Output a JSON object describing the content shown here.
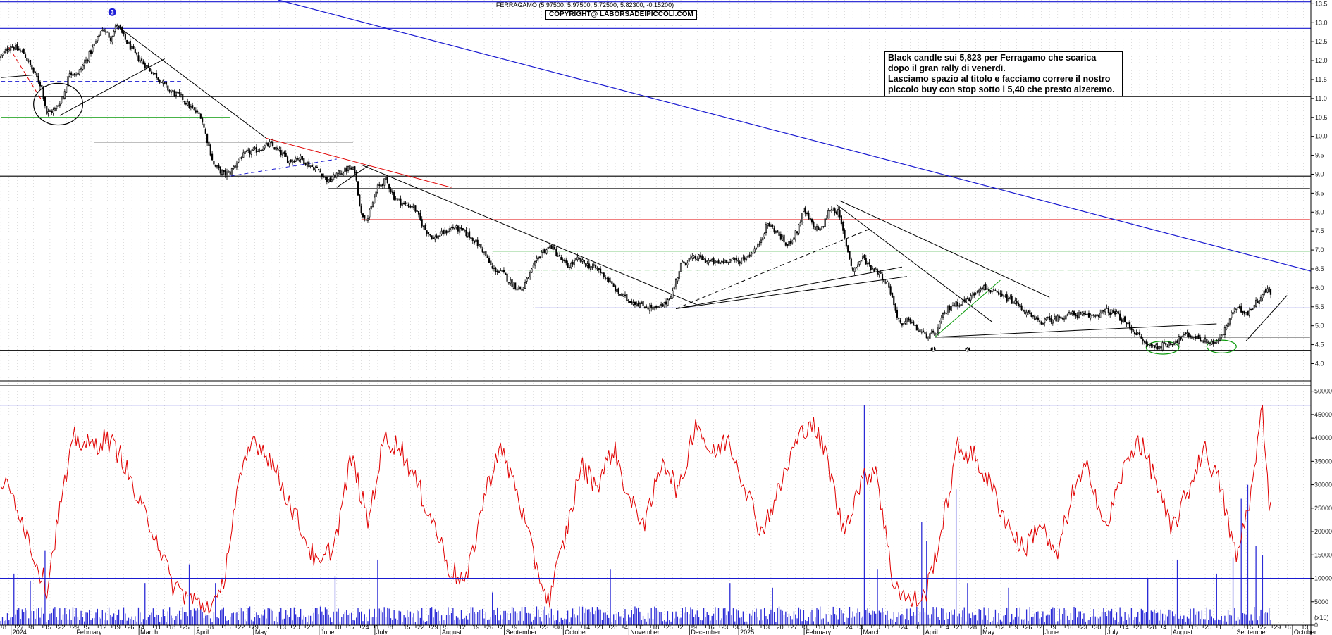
{
  "header": {
    "title": "FERRAGAMO (5.97500, 5.97500, 5.72500, 5.82300, -0.15200)",
    "copyright": "COPYRIGHT@ LABORSADEIPICCOLI.COM"
  },
  "note": {
    "lines": [
      "Black candle sui 5,823 per Ferragamo che scarica",
      "dopo il gran rally di venerdì.",
      "Lasciamo spazio al titolo e facciamo correre il nostro",
      "piccolo buy con stop sotto i 5,40 che presto alzeremo."
    ]
  },
  "markers": [
    {
      "label": "3",
      "date_index": 68,
      "price": 13.28
    },
    {
      "label": "1",
      "date_index": 569,
      "price": 4.38
    },
    {
      "label": "2",
      "date_index": 590,
      "price": 4.38
    }
  ],
  "colors": {
    "candle": "#000000",
    "oscillator": "#e00000",
    "volume": "#2b2bd6",
    "h_blue": "#1a1ad0",
    "h_red": "#e00000",
    "h_green": "#0a9a0a"
  },
  "chart_data": {
    "type": "candlestick",
    "symbol": "FERRAGAMO",
    "last": {
      "open": 5.975,
      "high": 5.975,
      "low": 5.725,
      "close": 5.823,
      "change": -0.152
    },
    "price_axis": {
      "ticks": [
        4.0,
        4.5,
        5.0,
        5.5,
        6.0,
        6.5,
        7.0,
        7.5,
        8.0,
        8.5,
        9.0,
        9.5,
        10.0,
        10.5,
        11.0,
        11.5,
        12.0,
        12.5,
        13.0,
        13.5
      ],
      "ylim": [
        3.6,
        13.6
      ]
    },
    "volume_axis": {
      "ticks": [
        0,
        5000,
        10000,
        15000,
        20000,
        25000,
        30000,
        35000,
        40000,
        45000,
        50000
      ],
      "ylim": [
        0,
        51000
      ],
      "unit_label": "(x10)"
    },
    "months": [
      {
        "label": "2024",
        "index": 8
      },
      {
        "label": "February",
        "index": 47
      },
      {
        "label": "March",
        "index": 86
      },
      {
        "label": "April",
        "index": 120
      },
      {
        "label": "May",
        "index": 156
      },
      {
        "label": "June",
        "index": 196
      },
      {
        "label": "July",
        "index": 230
      },
      {
        "label": "August",
        "index": 270
      },
      {
        "label": "September",
        "index": 309
      },
      {
        "label": "October",
        "index": 345
      },
      {
        "label": "November",
        "index": 385
      },
      {
        "label": "December",
        "index": 422
      },
      {
        "label": "2025",
        "index": 452
      },
      {
        "label": "February",
        "index": 492
      },
      {
        "label": "March",
        "index": 527
      },
      {
        "label": "April",
        "index": 565
      },
      {
        "label": "May",
        "index": 600
      },
      {
        "label": "June",
        "index": 638
      },
      {
        "label": "July",
        "index": 676
      },
      {
        "label": "August",
        "index": 716
      },
      {
        "label": "September",
        "index": 755
      },
      {
        "label": "October",
        "index": 790
      }
    ],
    "day_ticks": [
      "8",
      "27",
      "8",
      "15",
      "22",
      "29",
      "5",
      "12",
      "19",
      "26",
      "4",
      "11",
      "18",
      "25",
      "2",
      "8",
      "15",
      "22",
      "29",
      "6",
      "13",
      "20",
      "27",
      "3",
      "10",
      "17",
      "24",
      "1",
      "8",
      "15",
      "22",
      "29",
      "5",
      "12",
      "19",
      "26",
      "2",
      "9",
      "16",
      "23",
      "30",
      "7",
      "14",
      "21",
      "28",
      "4",
      "11",
      "18",
      "25",
      "2",
      "9",
      "16",
      "23",
      "30",
      "6",
      "13",
      "20",
      "27",
      "3",
      "10",
      "17",
      "24",
      "3",
      "10",
      "17",
      "24",
      "31",
      "7",
      "14",
      "21",
      "28",
      "5",
      "12",
      "19",
      "26",
      "2",
      "9",
      "16",
      "23",
      "30",
      "7",
      "14",
      "21",
      "28",
      "4",
      "11",
      "18",
      "25",
      "1",
      "8",
      "15",
      "22",
      "29",
      "6",
      "13",
      "20"
    ],
    "horizontal_lines": [
      {
        "price": 13.55,
        "color": "blue"
      },
      {
        "price": 12.85,
        "color": "blue"
      },
      {
        "price": 11.05,
        "color": "black"
      },
      {
        "price": 10.5,
        "color": "green",
        "from_index": 0,
        "to_index": 140
      },
      {
        "price": 9.85,
        "color": "black",
        "from_index": 57,
        "to_index": 215
      },
      {
        "price": 8.95,
        "color": "black"
      },
      {
        "price": 8.62,
        "color": "black",
        "from_index": 200,
        "to_index": 799
      },
      {
        "price": 7.8,
        "color": "red",
        "from_index": 220,
        "to_index": 799
      },
      {
        "price": 6.97,
        "color": "green",
        "from_index": 300,
        "to_index": 799
      },
      {
        "price": 6.47,
        "color": "green",
        "dashed": true,
        "from_index": 300,
        "to_index": 799
      },
      {
        "price": 5.47,
        "color": "blue",
        "from_index": 326,
        "to_index": 799
      },
      {
        "price": 4.7,
        "color": "black",
        "from_index": 570,
        "to_index": 799
      },
      {
        "price": 4.35,
        "color": "black"
      }
    ],
    "trendlines": [
      {
        "from": [
          0,
          11.55
        ],
        "to": [
          20,
          11.62
        ],
        "color": "black"
      },
      {
        "from": [
          5,
          12.35
        ],
        "to": [
          25,
          10.95
        ],
        "color": "red",
        "dashed": true
      },
      {
        "from": [
          0,
          11.45
        ],
        "to": [
          110,
          11.45
        ],
        "color": "blue",
        "dashed": true
      },
      {
        "from": [
          36,
          10.55
        ],
        "to": [
          100,
          12.05
        ],
        "color": "black"
      },
      {
        "from": [
          70,
          12.95
        ],
        "to": [
          162,
          9.95
        ],
        "color": "black"
      },
      {
        "from": [
          162,
          9.95
        ],
        "to": [
          275,
          8.65
        ],
        "color": "red"
      },
      {
        "from": [
          140,
          8.95
        ],
        "to": [
          205,
          9.4
        ],
        "color": "blue",
        "dashed": true
      },
      {
        "from": [
          205,
          8.65
        ],
        "to": [
          225,
          9.25
        ],
        "color": "black"
      },
      {
        "from": [
          220,
          9.25
        ],
        "to": [
          425,
          5.55
        ],
        "color": "black"
      },
      {
        "from": [
          412,
          5.45
        ],
        "to": [
          530,
          7.55
        ],
        "color": "black",
        "dashed": true
      },
      {
        "from": [
          412,
          5.45
        ],
        "to": [
          550,
          6.55
        ],
        "color": "black"
      },
      {
        "from": [
          412,
          5.45
        ],
        "to": [
          553,
          6.3
        ],
        "color": "black"
      },
      {
        "from": [
          510,
          8.2
        ],
        "to": [
          605,
          5.1
        ],
        "color": "black"
      },
      {
        "from": [
          512,
          8.3
        ],
        "to": [
          640,
          5.75
        ],
        "color": "black"
      },
      {
        "from": [
          570,
          4.7
        ],
        "to": [
          610,
          6.2
        ],
        "color": "green"
      },
      {
        "from": [
          570,
          4.7
        ],
        "to": [
          742,
          5.05
        ],
        "color": "black"
      },
      {
        "from": [
          760,
          4.6
        ],
        "to": [
          785,
          5.8
        ],
        "color": "black"
      }
    ],
    "ellipses": [
      {
        "center": [
          35,
          10.85
        ],
        "rx_days": 15,
        "ry_price": 0.55,
        "color": "black"
      },
      {
        "center": [
          709,
          4.42
        ],
        "rx_days": 10,
        "ry_price": 0.17,
        "color": "green"
      },
      {
        "center": [
          745,
          4.45
        ],
        "rx_days": 9,
        "ry_price": 0.17,
        "color": "green"
      }
    ],
    "anchors": [
      [
        0,
        12.1
      ],
      [
        6,
        12.4
      ],
      [
        14,
        12.2
      ],
      [
        20,
        11.7
      ],
      [
        25,
        11.3
      ],
      [
        28,
        10.6
      ],
      [
        33,
        10.7
      ],
      [
        38,
        11.05
      ],
      [
        42,
        11.7
      ],
      [
        47,
        11.65
      ],
      [
        52,
        12.0
      ],
      [
        57,
        12.4
      ],
      [
        62,
        12.85
      ],
      [
        67,
        12.6
      ],
      [
        71,
        12.95
      ],
      [
        76,
        12.55
      ],
      [
        83,
        12.1
      ],
      [
        90,
        11.8
      ],
      [
        96,
        11.55
      ],
      [
        103,
        11.2
      ],
      [
        110,
        11.05
      ],
      [
        116,
        10.75
      ],
      [
        122,
        10.55
      ],
      [
        126,
        9.9
      ],
      [
        130,
        9.25
      ],
      [
        136,
        9.0
      ],
      [
        140,
        9.05
      ],
      [
        145,
        9.4
      ],
      [
        150,
        9.55
      ],
      [
        157,
        9.65
      ],
      [
        164,
        9.8
      ],
      [
        170,
        9.6
      ],
      [
        176,
        9.35
      ],
      [
        182,
        9.45
      ],
      [
        188,
        9.25
      ],
      [
        194,
        9.1
      ],
      [
        200,
        8.8
      ],
      [
        205,
        9.0
      ],
      [
        212,
        9.15
      ],
      [
        216,
        9.1
      ],
      [
        220,
        7.95
      ],
      [
        224,
        7.85
      ],
      [
        230,
        8.65
      ],
      [
        235,
        8.85
      ],
      [
        240,
        8.4
      ],
      [
        246,
        8.2
      ],
      [
        252,
        8.15
      ],
      [
        258,
        7.6
      ],
      [
        264,
        7.3
      ],
      [
        270,
        7.45
      ],
      [
        276,
        7.6
      ],
      [
        282,
        7.5
      ],
      [
        288,
        7.3
      ],
      [
        294,
        7.0
      ],
      [
        300,
        6.5
      ],
      [
        306,
        6.4
      ],
      [
        312,
        6.1
      ],
      [
        318,
        5.95
      ],
      [
        324,
        6.45
      ],
      [
        330,
        6.95
      ],
      [
        336,
        7.1
      ],
      [
        341,
        6.8
      ],
      [
        346,
        6.55
      ],
      [
        352,
        6.75
      ],
      [
        358,
        6.6
      ],
      [
        364,
        6.5
      ],
      [
        370,
        6.25
      ],
      [
        376,
        5.9
      ],
      [
        382,
        5.7
      ],
      [
        388,
        5.6
      ],
      [
        394,
        5.5
      ],
      [
        400,
        5.45
      ],
      [
        405,
        5.55
      ],
      [
        410,
        5.9
      ],
      [
        415,
        6.6
      ],
      [
        420,
        6.75
      ],
      [
        426,
        6.8
      ],
      [
        432,
        6.7
      ],
      [
        438,
        6.65
      ],
      [
        444,
        6.75
      ],
      [
        450,
        6.7
      ],
      [
        456,
        6.85
      ],
      [
        462,
        7.1
      ],
      [
        468,
        7.7
      ],
      [
        474,
        7.45
      ],
      [
        480,
        7.1
      ],
      [
        486,
        7.5
      ],
      [
        490,
        8.05
      ],
      [
        496,
        7.6
      ],
      [
        501,
        7.55
      ],
      [
        506,
        8.1
      ],
      [
        511,
        8.0
      ],
      [
        515,
        7.3
      ],
      [
        520,
        6.45
      ],
      [
        526,
        6.8
      ],
      [
        531,
        6.55
      ],
      [
        536,
        6.4
      ],
      [
        542,
        6.05
      ],
      [
        546,
        5.4
      ],
      [
        550,
        4.95
      ],
      [
        554,
        5.2
      ],
      [
        558,
        4.95
      ],
      [
        564,
        4.75
      ],
      [
        570,
        4.75
      ],
      [
        575,
        5.25
      ],
      [
        580,
        5.55
      ],
      [
        586,
        5.6
      ],
      [
        592,
        5.75
      ],
      [
        598,
        6.05
      ],
      [
        603,
        5.95
      ],
      [
        609,
        5.8
      ],
      [
        615,
        5.7
      ],
      [
        621,
        5.55
      ],
      [
        627,
        5.3
      ],
      [
        633,
        5.1
      ],
      [
        639,
        5.15
      ],
      [
        645,
        5.2
      ],
      [
        651,
        5.3
      ],
      [
        657,
        5.3
      ],
      [
        663,
        5.25
      ],
      [
        669,
        5.3
      ],
      [
        675,
        5.4
      ],
      [
        681,
        5.3
      ],
      [
        687,
        5.05
      ],
      [
        693,
        4.8
      ],
      [
        699,
        4.5
      ],
      [
        705,
        4.45
      ],
      [
        711,
        4.5
      ],
      [
        717,
        4.6
      ],
      [
        723,
        4.75
      ],
      [
        729,
        4.7
      ],
      [
        735,
        4.6
      ],
      [
        741,
        4.55
      ],
      [
        745,
        4.7
      ],
      [
        749,
        5.1
      ],
      [
        753,
        5.45
      ],
      [
        757,
        5.4
      ],
      [
        761,
        5.35
      ],
      [
        765,
        5.55
      ],
      [
        769,
        5.8
      ],
      [
        773,
        5.95
      ],
      [
        775,
        5.82
      ]
    ],
    "volume_spikes": [
      [
        8,
        11000
      ],
      [
        18,
        9500
      ],
      [
        27,
        16000
      ],
      [
        88,
        9000
      ],
      [
        115,
        13000
      ],
      [
        131,
        9000
      ],
      [
        204,
        10500
      ],
      [
        230,
        14000
      ],
      [
        300,
        7000
      ],
      [
        372,
        12000
      ],
      [
        445,
        9000
      ],
      [
        471,
        8000
      ],
      [
        527,
        47000
      ],
      [
        535,
        12000
      ],
      [
        562,
        22000
      ],
      [
        565,
        18000
      ],
      [
        583,
        29000
      ],
      [
        590,
        9000
      ],
      [
        615,
        8000
      ],
      [
        700,
        10000
      ],
      [
        718,
        14000
      ],
      [
        742,
        11000
      ],
      [
        752,
        14500
      ],
      [
        757,
        27000
      ],
      [
        761,
        30000
      ],
      [
        766,
        17000
      ],
      [
        770,
        15000
      ]
    ],
    "oscillator_levels": [
      [
        0,
        31000
      ],
      [
        10,
        26000
      ],
      [
        20,
        15000
      ],
      [
        28,
        8000
      ],
      [
        36,
        25000
      ],
      [
        45,
        40000
      ],
      [
        55,
        38000
      ],
      [
        64,
        40000
      ],
      [
        74,
        36000
      ],
      [
        84,
        26000
      ],
      [
        94,
        20000
      ],
      [
        104,
        9000
      ],
      [
        114,
        6000
      ],
      [
        124,
        4000
      ],
      [
        134,
        5500
      ],
      [
        144,
        28000
      ],
      [
        154,
        40000
      ],
      [
        164,
        36000
      ],
      [
        174,
        28000
      ],
      [
        184,
        20000
      ],
      [
        194,
        12000
      ],
      [
        204,
        18000
      ],
      [
        214,
        36000
      ],
      [
        224,
        22000
      ],
      [
        234,
        40000
      ],
      [
        244,
        38000
      ],
      [
        254,
        30000
      ],
      [
        264,
        22000
      ],
      [
        274,
        12000
      ],
      [
        284,
        9000
      ],
      [
        294,
        26000
      ],
      [
        304,
        38000
      ],
      [
        314,
        30000
      ],
      [
        324,
        16000
      ],
      [
        334,
        5000
      ],
      [
        344,
        18000
      ],
      [
        354,
        34000
      ],
      [
        364,
        30000
      ],
      [
        374,
        38000
      ],
      [
        384,
        26000
      ],
      [
        394,
        22000
      ],
      [
        404,
        36000
      ],
      [
        414,
        28000
      ],
      [
        424,
        44000
      ],
      [
        434,
        36000
      ],
      [
        444,
        40000
      ],
      [
        454,
        30000
      ],
      [
        464,
        20000
      ],
      [
        474,
        28000
      ],
      [
        484,
        38000
      ],
      [
        494,
        44000
      ],
      [
        504,
        36000
      ],
      [
        514,
        20000
      ],
      [
        524,
        30000
      ],
      [
        534,
        34000
      ],
      [
        544,
        10000
      ],
      [
        554,
        5000
      ],
      [
        564,
        6000
      ],
      [
        574,
        20000
      ],
      [
        584,
        38000
      ],
      [
        594,
        36000
      ],
      [
        604,
        30000
      ],
      [
        614,
        22000
      ],
      [
        624,
        16000
      ],
      [
        634,
        22000
      ],
      [
        644,
        14000
      ],
      [
        654,
        28000
      ],
      [
        664,
        34000
      ],
      [
        674,
        20000
      ],
      [
        684,
        32000
      ],
      [
        694,
        40000
      ],
      [
        704,
        32000
      ],
      [
        714,
        20000
      ],
      [
        724,
        28000
      ],
      [
        734,
        38000
      ],
      [
        744,
        30000
      ],
      [
        754,
        14000
      ],
      [
        764,
        30000
      ],
      [
        770,
        47000
      ],
      [
        774,
        26000
      ],
      [
        778,
        36000
      ],
      [
        784,
        43000
      ],
      [
        788,
        37000
      ]
    ]
  }
}
